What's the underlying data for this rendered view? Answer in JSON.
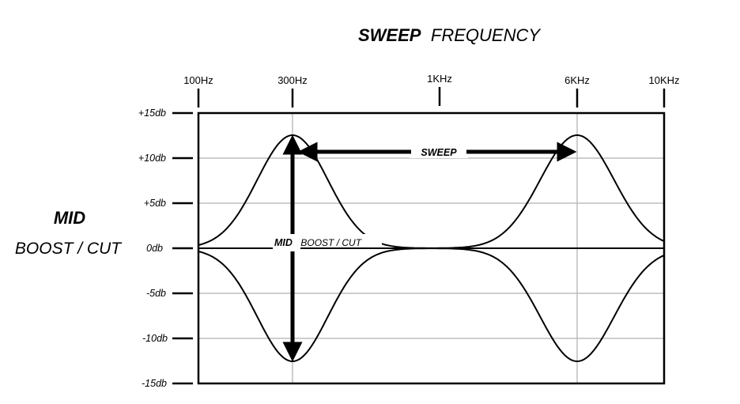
{
  "title": {
    "bold": "SWEEP",
    "normal": "FREQUENCY"
  },
  "frequency_labels": [
    "100Hz",
    "300Hz",
    "1KHz",
    "6KHz",
    "10KHz"
  ],
  "db_labels": [
    "+15db",
    "+10db",
    "+5db",
    "0db",
    "-5db",
    "-10db",
    "-15db"
  ],
  "side_label": {
    "bold": "MID",
    "normal": "BOOST / CUT"
  },
  "sweep_label": "SWEEP",
  "boost_cut_label": {
    "bold": "MID",
    "normal": "BOOST / CUT"
  },
  "colors": {
    "line": "#000000",
    "grid": "#bdbdbd",
    "background": "#ffffff"
  }
}
